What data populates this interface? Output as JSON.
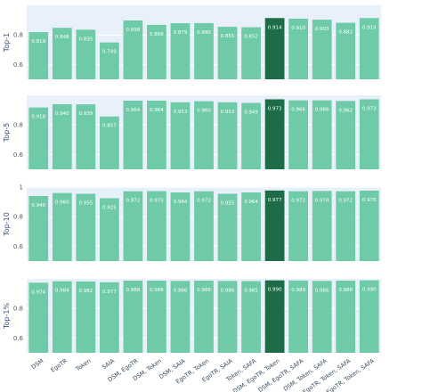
{
  "chart_data": {
    "type": "bar",
    "categories": [
      "DSM",
      "EgoTR",
      "Token",
      "SAIA",
      "DSM, EgoTR",
      "DSM, Token",
      "DSM, SAIA",
      "EgoTR, Token",
      "EgoTR, SAIA",
      "Token, SAFA",
      "DSM, EgoTR, Token",
      "DSM, EgoTR, SAFA",
      "DSM, Token, SAFA",
      "EgoTR, Token, SAFA",
      "DSM, EgoTR, Token, SAFA"
    ],
    "highlight_index": 10,
    "colors": {
      "bar": "#6fcaa7",
      "highlight": "#1e6b48",
      "panel_bg": "#e8f1fa",
      "grid": "#ffffff",
      "label_text": "#ffffff"
    },
    "panels": [
      {
        "ylabel": "Top-1",
        "ylim": [
          0.5,
          1.0
        ],
        "yticks": [
          "0.8",
          "0.6"
        ],
        "ytick_values": [
          0.8,
          0.6
        ],
        "values": [
          0.819,
          0.848,
          0.835,
          0.749,
          0.898,
          0.868,
          0.879,
          0.88,
          0.855,
          0.852,
          0.914,
          0.91,
          0.903,
          0.882,
          0.914
        ],
        "labels": [
          "0.819",
          "0.848",
          "0.835",
          "0.749",
          "0.898",
          "0.868",
          "0.879",
          "0.880",
          "0.855",
          "0.852",
          "0.914",
          "0.910",
          "0.903",
          "0.882",
          "0.914"
        ]
      },
      {
        "ylabel": "Top-5",
        "ylim": [
          0.5,
          1.0
        ],
        "yticks": [
          "0.8",
          "0.6"
        ],
        "ytick_values": [
          0.8,
          0.6
        ],
        "values": [
          0.918,
          0.94,
          0.939,
          0.857,
          0.964,
          0.964,
          0.953,
          0.96,
          0.953,
          0.949,
          0.973,
          0.966,
          0.966,
          0.962,
          0.973
        ],
        "labels": [
          "0.918",
          "0.940",
          "0.939",
          "0.857",
          "0.964",
          "0.964",
          "0.953",
          "0.960",
          "0.953",
          "0.949",
          "0.973",
          "0.966",
          "0.966",
          "0.962",
          "0.973"
        ]
      },
      {
        "ylabel": "Top-10",
        "ylim": [
          0.5,
          1.0
        ],
        "yticks": [
          "1",
          "0.8",
          "0.6"
        ],
        "ytick_values": [
          1.0,
          0.8,
          0.6
        ],
        "values": [
          0.94,
          0.96,
          0.955,
          0.925,
          0.972,
          0.973,
          0.964,
          0.972,
          0.955,
          0.964,
          0.977,
          0.972,
          0.974,
          0.972,
          0.976
        ],
        "labels": [
          "0.940",
          "0.960",
          "0.955",
          "0.925",
          "0.972",
          "0.973",
          "0.964",
          "0.972",
          "0.955",
          "0.964",
          "0.977",
          "0.972",
          "0.974",
          "0.972",
          "0.976"
        ]
      },
      {
        "ylabel": "Top-1%",
        "ylim": [
          0.5,
          1.0
        ],
        "yticks": [
          "0.8",
          "0.6"
        ],
        "ytick_values": [
          0.8,
          0.6
        ],
        "values": [
          0.974,
          0.984,
          0.982,
          0.977,
          0.988,
          0.988,
          0.986,
          0.988,
          0.986,
          0.985,
          0.99,
          0.989,
          0.986,
          0.988,
          0.99
        ],
        "labels": [
          "0.974",
          "0.984",
          "0.982",
          "0.977",
          "0.988",
          "0.988",
          "0.986",
          "0.988",
          "0.986",
          "0.985",
          "0.990",
          "0.989",
          "0.986",
          "0.988",
          "0.990"
        ]
      }
    ]
  }
}
